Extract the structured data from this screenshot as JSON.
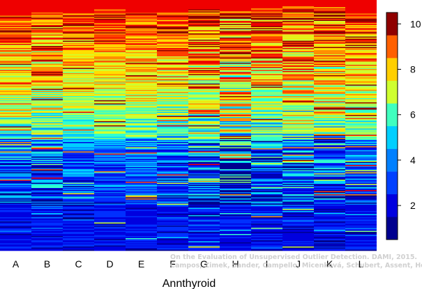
{
  "chart_data": {
    "type": "heatmap",
    "title": "",
    "xlabel": "Annthyroid",
    "ylabel": "",
    "categories": [
      "A",
      "B",
      "C",
      "D",
      "E",
      "F",
      "G",
      "H",
      "I",
      "J",
      "K",
      "L"
    ],
    "colorbar": {
      "min": 0.5,
      "max": 10.5,
      "levels": 10,
      "ticks": [
        2,
        4,
        6,
        8,
        10
      ],
      "tick_labels": [
        "2",
        "4",
        "6",
        "8",
        "10"
      ],
      "colors": [
        "#00008F",
        "#0000DF",
        "#0030FF",
        "#0080FF",
        "#00CFFF",
        "#30FFCF",
        "#80FF80",
        "#CFFF30",
        "#FFDF00",
        "#FF8F00",
        "#FF4000",
        "#EF0000",
        "#8F0000"
      ]
    },
    "series_profile": {
      "description_free": true,
      "top_band_value": 10,
      "bottom_band_value": 1
    }
  },
  "watermark": {
    "line1": "On the Evaluation of Unsupervised Outlier Detection. DAMI, 2015.",
    "line2": "Campos, Zimek, Sander, Campello, Micenková, Schubert, Assent, Houle"
  }
}
